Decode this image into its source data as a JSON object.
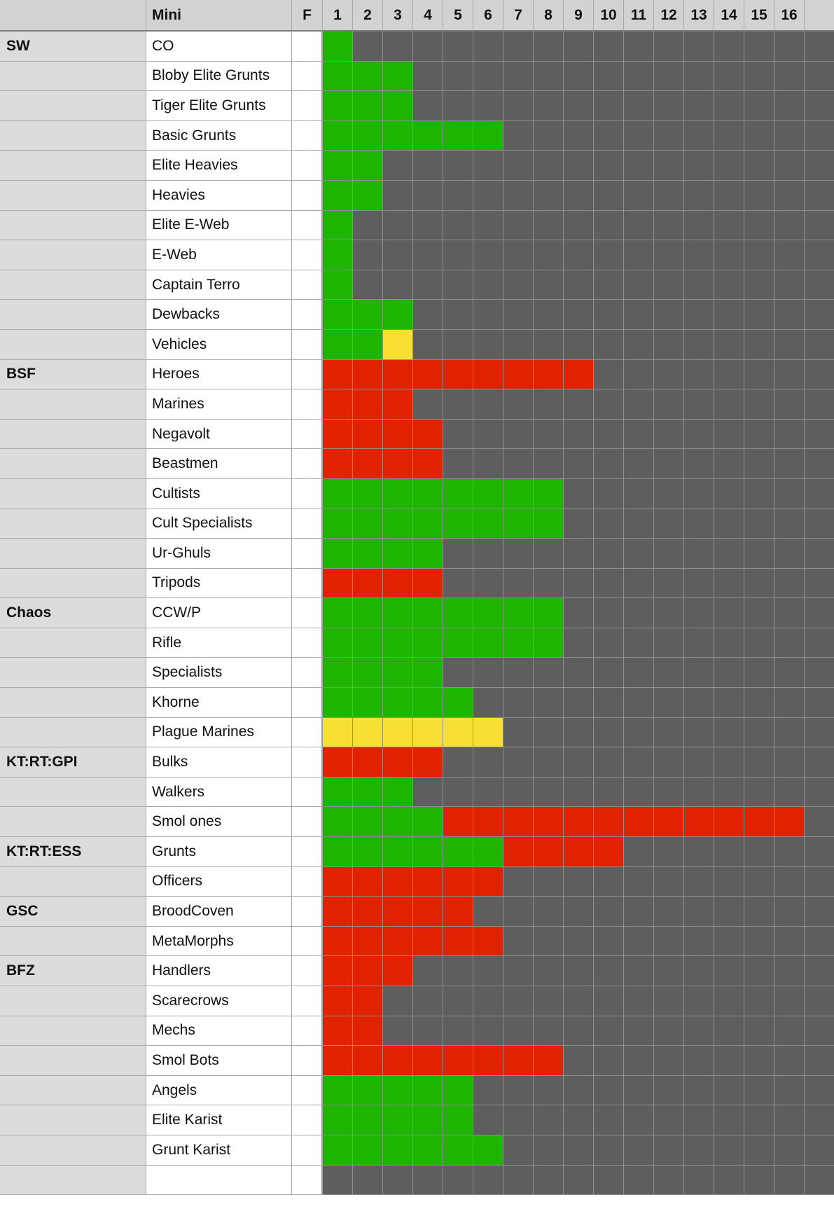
{
  "header": {
    "group": "",
    "mini": "Mini",
    "f": "F",
    "columns": [
      "1",
      "2",
      "3",
      "4",
      "5",
      "6",
      "7",
      "8",
      "9",
      "10",
      "11",
      "12",
      "13",
      "14",
      "15",
      "16",
      ""
    ]
  },
  "colors": {
    "g": "#1eb500",
    "r": "#e02200",
    "y": "#f7df33",
    "x": "#5e5e5e"
  },
  "rows": [
    {
      "group": "SW",
      "mini": "CO",
      "f": "",
      "cells": "gxxxxxxxxxxxxxxxx"
    },
    {
      "group": "",
      "mini": "Bloby Elite Grunts",
      "f": "",
      "cells": "gggxxxxxxxxxxxxxx"
    },
    {
      "group": "",
      "mini": "Tiger Elite Grunts",
      "f": "",
      "cells": "gggxxxxxxxxxxxxxx"
    },
    {
      "group": "",
      "mini": "Basic Grunts",
      "f": "",
      "cells": "ggggggxxxxxxxxxxx"
    },
    {
      "group": "",
      "mini": "Elite Heavies",
      "f": "",
      "cells": "ggxxxxxxxxxxxxxxx"
    },
    {
      "group": "",
      "mini": "Heavies",
      "f": "",
      "cells": "ggxxxxxxxxxxxxxxx"
    },
    {
      "group": "",
      "mini": "Elite E-Web",
      "f": "",
      "cells": "gxxxxxxxxxxxxxxxx"
    },
    {
      "group": "",
      "mini": "E-Web",
      "f": "",
      "cells": "gxxxxxxxxxxxxxxxx"
    },
    {
      "group": "",
      "mini": "Captain Terro",
      "f": "",
      "cells": "gxxxxxxxxxxxxxxxx"
    },
    {
      "group": "",
      "mini": "Dewbacks",
      "f": "",
      "cells": "gggxxxxxxxxxxxxxx"
    },
    {
      "group": "",
      "mini": "Vehicles",
      "f": "",
      "cells": "ggyxxxxxxxxxxxxxx"
    },
    {
      "group": "BSF",
      "mini": "Heroes",
      "f": "",
      "cells": "rrrrrrrrrxxxxxxxx"
    },
    {
      "group": "",
      "mini": "Marines",
      "f": "",
      "cells": "rrrxxxxxxxxxxxxxx"
    },
    {
      "group": "",
      "mini": "Negavolt",
      "f": "",
      "cells": "rrrrxxxxxxxxxxxxx"
    },
    {
      "group": "",
      "mini": "Beastmen",
      "f": "",
      "cells": "rrrrxxxxxxxxxxxxx"
    },
    {
      "group": "",
      "mini": "Cultists",
      "f": "",
      "cells": "ggggggggxxxxxxxxx"
    },
    {
      "group": "",
      "mini": "Cult Specialists",
      "f": "",
      "cells": "ggggggggxxxxxxxxx"
    },
    {
      "group": "",
      "mini": "Ur-Ghuls",
      "f": "",
      "cells": "ggggxxxxxxxxxxxxx"
    },
    {
      "group": "",
      "mini": "Tripods",
      "f": "",
      "cells": "rrrrxxxxxxxxxxxxx"
    },
    {
      "group": "Chaos",
      "mini": "CCW/P",
      "f": "",
      "cells": "ggggggggxxxxxxxxx"
    },
    {
      "group": "",
      "mini": "Rifle",
      "f": "",
      "cells": "ggggggggxxxxxxxxx"
    },
    {
      "group": "",
      "mini": "Specialists",
      "f": "",
      "cells": "ggggxxxxxxxxxxxxx"
    },
    {
      "group": "",
      "mini": "Khorne",
      "f": "",
      "cells": "gggggxxxxxxxxxxxx"
    },
    {
      "group": "",
      "mini": "Plague Marines",
      "f": "",
      "cells": "yyyyyyxxxxxxxxxxx"
    },
    {
      "group": "KT:RT:GPI",
      "mini": "Bulks",
      "f": "",
      "cells": "rrrrxxxxxxxxxxxxx"
    },
    {
      "group": "",
      "mini": "Walkers",
      "f": "",
      "cells": "gggxxxxxxxxxxxxxx"
    },
    {
      "group": "",
      "mini": "Smol ones",
      "f": "",
      "cells": "ggggrrrrrrrrrrrrx"
    },
    {
      "group": "KT:RT:ESS",
      "mini": "Grunts",
      "f": "",
      "cells": "ggggggrrrrxxxxxxx"
    },
    {
      "group": "",
      "mini": "Officers",
      "f": "",
      "cells": "rrrrrrxxxxxxxxxxx"
    },
    {
      "group": "GSC",
      "mini": "BroodCoven",
      "f": "",
      "cells": "rrrrrxxxxxxxxxxxx"
    },
    {
      "group": "",
      "mini": "MetaMorphs",
      "f": "",
      "cells": "rrrrrrxxxxxxxxxxx"
    },
    {
      "group": "BFZ",
      "mini": "Handlers",
      "f": "",
      "cells": "rrrxxxxxxxxxxxxxx"
    },
    {
      "group": "",
      "mini": "Scarecrows",
      "f": "",
      "cells": "rrxxxxxxxxxxxxxxx"
    },
    {
      "group": "",
      "mini": "Mechs",
      "f": "",
      "cells": "rrxxxxxxxxxxxxxxx"
    },
    {
      "group": "",
      "mini": "Smol Bots",
      "f": "",
      "cells": "rrrrrrrrxxxxxxxxx"
    },
    {
      "group": "",
      "mini": "Angels",
      "f": "",
      "cells": "gggggxxxxxxxxxxxx"
    },
    {
      "group": "",
      "mini": "Elite Karist",
      "f": "",
      "cells": "gggggxxxxxxxxxxxx"
    },
    {
      "group": "",
      "mini": "Grunt Karist",
      "f": "",
      "cells": "ggggggxxxxxxxxxxx"
    },
    {
      "group": "",
      "mini": "",
      "f": "",
      "cells": "xxxxxxxxxxxxxxxxx"
    }
  ]
}
